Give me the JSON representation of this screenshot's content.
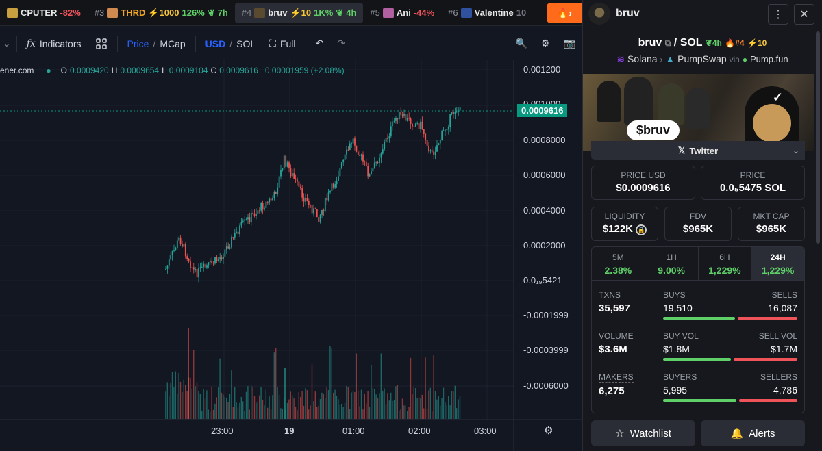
{
  "topbar": {
    "tabs": [
      {
        "rank": "",
        "ticker": "CPUTER",
        "change": "-82%"
      },
      {
        "rank": "#3",
        "ticker": "THRD",
        "boost": "⚡1000",
        "change": "126%",
        "age": "7h"
      },
      {
        "rank": "#4",
        "ticker": "bruv",
        "boost": "⚡10",
        "change": "1K%",
        "age": "4h"
      },
      {
        "rank": "#5",
        "ticker": "Ani",
        "change": "-44%"
      },
      {
        "rank": "#6",
        "ticker": "Valentine",
        "change": "10"
      }
    ]
  },
  "toolbar": {
    "indicators": "Indicators",
    "price": "Price",
    "mcap": "MCap",
    "usd": "USD",
    "sol": "SOL",
    "full": "Full"
  },
  "chart": {
    "source": "ener.com",
    "ohlc": {
      "o_label": "O",
      "o": "0.0009420",
      "h_label": "H",
      "h": "0.0009654",
      "l_label": "L",
      "l": "0.0009104",
      "c_label": "C",
      "c": "0.0009616",
      "chg": "0.00001959 (+2.08%)"
    },
    "y_ticks": [
      "0.001200",
      "0.001000",
      "0.0008000",
      "0.0006000",
      "0.0004000",
      "0.0002000",
      "0.0₁₉5421",
      "-0.0001999",
      "-0.0003999",
      "-0.0006000"
    ],
    "last_price": "0.0009616",
    "x_ticks": [
      "23:00",
      "19",
      "01:00",
      "02:00",
      "03:00"
    ]
  },
  "panel": {
    "name": "bruv",
    "pair_base": "bruv",
    "pair_quote": "SOL",
    "age": "4h",
    "rank": "#4",
    "boost": "10",
    "chain": "Solana",
    "dex": "PumpSwap",
    "via": "via",
    "launchpad": "Pump.fun",
    "banner_text": "$bruv",
    "twitter": "Twitter",
    "price_usd_label": "PRICE USD",
    "price_usd": "$0.0009616",
    "price_label": "PRICE",
    "price_sol": "0.0₅5475 SOL",
    "liq_label": "LIQUIDITY",
    "liq": "$122K",
    "fdv_label": "FDV",
    "fdv": "$965K",
    "mcap_label": "MKT CAP",
    "mcap": "$965K",
    "periods": [
      {
        "label": "5M",
        "value": "2.38%"
      },
      {
        "label": "1H",
        "value": "9.00%"
      },
      {
        "label": "6H",
        "value": "1,229%"
      },
      {
        "label": "24H",
        "value": "1,229%"
      }
    ],
    "stats": [
      {
        "label": "TXNS",
        "value": "35,597",
        "l_head": "BUYS",
        "r_head": "SELLS",
        "l_val": "19,510",
        "r_val": "16,087",
        "ratio": 0.548
      },
      {
        "label": "VOLUME",
        "value": "$3.6M",
        "l_head": "BUY VOL",
        "r_head": "SELL VOL",
        "l_val": "$1.8M",
        "r_val": "$1.7M",
        "ratio": 0.514
      },
      {
        "label": "MAKERS",
        "value": "6,275",
        "l_head": "BUYERS",
        "r_head": "SELLERS",
        "l_val": "5,995",
        "r_val": "4,786",
        "ratio": 0.556
      }
    ],
    "watchlist": "Watchlist",
    "alerts": "Alerts"
  }
}
